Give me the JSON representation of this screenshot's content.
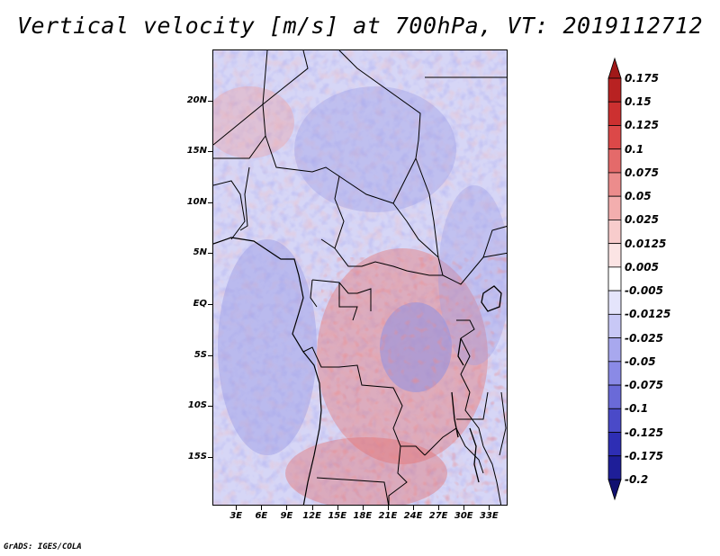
{
  "title": "Vertical velocity [m/s] at 700hPa, VT: 2019112712",
  "credit": "GrADS: IGES/COLA",
  "map": {
    "lat_labels": [
      {
        "value": 20,
        "label": "20N"
      },
      {
        "value": 15,
        "label": "15N"
      },
      {
        "value": 10,
        "label": "10N"
      },
      {
        "value": 5,
        "label": "5N"
      },
      {
        "value": 0,
        "label": "EQ"
      },
      {
        "value": -5,
        "label": "5S"
      },
      {
        "value": -10,
        "label": "10S"
      },
      {
        "value": -15,
        "label": "15S"
      }
    ],
    "lon_labels": [
      {
        "value": 3,
        "label": "3E"
      },
      {
        "value": 6,
        "label": "6E"
      },
      {
        "value": 9,
        "label": "9E"
      },
      {
        "value": 12,
        "label": "12E"
      },
      {
        "value": 15,
        "label": "15E"
      },
      {
        "value": 18,
        "label": "18E"
      },
      {
        "value": 21,
        "label": "21E"
      },
      {
        "value": 24,
        "label": "24E"
      },
      {
        "value": 27,
        "label": "27E"
      },
      {
        "value": 30,
        "label": "30E"
      },
      {
        "value": 33,
        "label": "33E"
      }
    ],
    "lon_range": [
      0.2,
      35.2
    ],
    "lat_range": [
      -19.8,
      25.0
    ]
  },
  "colorbar": {
    "labels": [
      "0.175",
      "0.15",
      "0.125",
      "0.1",
      "0.075",
      "0.05",
      "0.025",
      "0.0125",
      "0.005",
      "-0.005",
      "-0.0125",
      "-0.025",
      "-0.05",
      "-0.075",
      "-0.1",
      "-0.125",
      "-0.175",
      "-0.2"
    ],
    "colors": [
      "#a01818",
      "#b82222",
      "#cc3030",
      "#dc4848",
      "#e46a6a",
      "#ec8c8c",
      "#f3aeae",
      "#f8cccc",
      "#fbe4e4",
      "#ffffff",
      "#e4e4fb",
      "#c8c8f6",
      "#a8a8ee",
      "#8a8ae6",
      "#6a6ad8",
      "#4a4ac8",
      "#2e2eb4",
      "#1e1e98",
      "#101070"
    ]
  }
}
